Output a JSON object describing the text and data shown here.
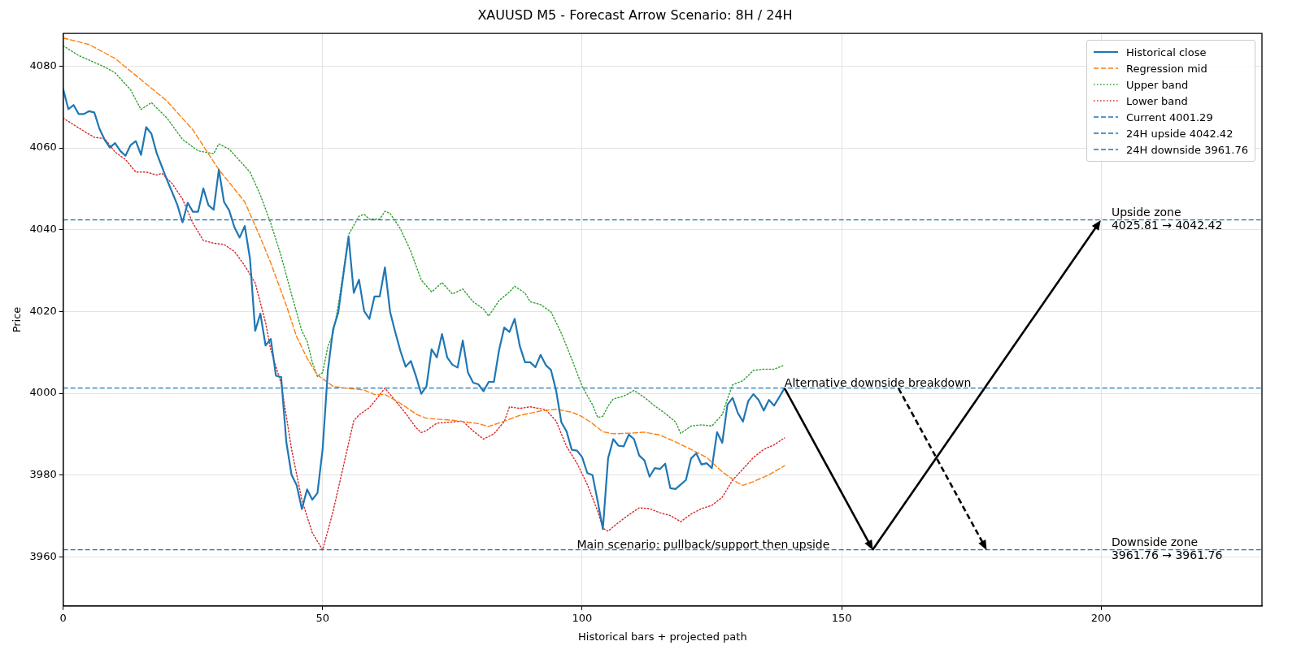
{
  "chart_data": {
    "type": "line",
    "title": "XAUUSD M5 - Forecast Arrow Scenario: 8H / 24H",
    "xlabel": "Historical bars + projected path",
    "ylabel": "Price",
    "xlim": [
      0,
      231
    ],
    "ylim": [
      3948,
      4088
    ],
    "xticks": [
      0,
      50,
      100,
      150,
      200
    ],
    "yticks": [
      3960,
      3980,
      4000,
      4020,
      4040,
      4060,
      4080
    ],
    "grid": true,
    "legend": "top right",
    "marker": "none",
    "series": [
      {
        "name": "Historical close",
        "color": "#1f77b4",
        "line_style": "solid",
        "x": [
          0,
          1,
          2,
          3,
          4,
          5,
          6,
          7,
          8,
          9,
          10,
          11,
          12,
          13,
          14,
          15,
          16,
          17,
          18,
          19,
          20,
          21,
          22,
          23,
          24,
          25,
          26,
          27,
          28,
          29,
          30,
          31,
          32,
          33,
          34,
          35,
          36,
          37,
          38,
          39,
          40,
          41,
          42,
          43,
          44,
          45,
          46,
          47,
          48,
          49,
          50,
          51,
          52,
          53,
          54,
          55,
          56,
          57,
          58,
          59,
          60,
          61,
          62,
          63,
          64,
          65,
          66,
          67,
          68,
          69,
          70,
          71,
          72,
          73,
          74,
          75,
          76,
          77,
          78,
          79,
          80,
          81,
          82,
          83,
          84,
          85,
          86,
          87,
          88,
          89,
          90,
          91,
          92,
          93,
          94,
          95,
          96,
          97,
          98,
          99,
          100,
          101,
          102,
          103,
          104,
          105,
          106,
          107,
          108,
          109,
          110,
          111,
          112,
          113,
          114,
          115,
          116,
          117,
          118,
          119,
          120,
          121,
          122,
          123,
          124,
          125,
          126,
          127,
          128,
          129,
          130,
          131,
          132,
          133,
          134,
          135,
          136,
          137,
          138,
          139
        ],
        "values": [
          4074.4,
          4069.5,
          4070.5,
          4068.3,
          4068.3,
          4069.0,
          4068.7,
          4064.7,
          4062.0,
          4060.1,
          4061.2,
          4059.3,
          4058.1,
          4060.7,
          4061.7,
          4058.3,
          4065.1,
          4063.5,
          4058.8,
          4055.5,
          4052.2,
          4049.2,
          4046.1,
          4041.8,
          4046.6,
          4044.4,
          4044.4,
          4050.1,
          4046.0,
          4044.9,
          4054.7,
          4046.8,
          4044.7,
          4040.6,
          4038.1,
          4040.9,
          4032.9,
          4015.3,
          4019.5,
          4011.7,
          4013.3,
          4004.3,
          4004.0,
          3988.1,
          3980.1,
          3977.5,
          3971.7,
          3976.5,
          3974.0,
          3975.6,
          3986.4,
          4005.5,
          4015.6,
          4019.7,
          4029.1,
          4038.3,
          4024.6,
          4027.8,
          4020.1,
          4018.2,
          4023.7,
          4023.7,
          4030.8,
          4019.9,
          4014.9,
          4010.3,
          4006.5,
          4007.9,
          4004.1,
          3999.9,
          4001.7,
          4010.8,
          4008.8,
          4014.5,
          4008.8,
          4007.0,
          4006.3,
          4012.9,
          4005.1,
          4002.6,
          4002.2,
          4000.5,
          4002.8,
          4002.8,
          4010.6,
          4016.1,
          4015.0,
          4018.2,
          4011.5,
          4007.6,
          4007.6,
          4006.4,
          4009.4,
          4006.9,
          4005.7,
          4000.6,
          3992.9,
          3990.7,
          3986.2,
          3986.0,
          3984.4,
          3980.5,
          3980.0,
          3973.6,
          3966.8,
          3984.1,
          3988.8,
          3987.2,
          3987.0,
          3989.9,
          3988.8,
          3984.8,
          3983.6,
          3979.6,
          3981.7,
          3981.5,
          3982.8,
          3976.8,
          3976.6,
          3977.7,
          3978.8,
          3984.1,
          3985.3,
          3982.6,
          3982.9,
          3981.7,
          3990.5,
          3987.9,
          3997.2,
          3998.9,
          3995.2,
          3993.1,
          3998.1,
          3999.8,
          3998.4,
          3995.8,
          3998.4,
          3997.0,
          3999.1,
          4001.29
        ]
      },
      {
        "name": "Regression mid",
        "color": "#ff7f0e",
        "line_style": "dashed",
        "x": [
          0,
          5,
          10,
          15,
          20,
          25,
          30,
          35,
          38,
          40,
          43,
          45,
          47,
          49,
          50,
          52,
          55,
          58,
          60,
          62,
          64,
          66,
          68,
          70,
          75,
          80,
          82,
          85,
          88,
          92,
          95,
          98,
          100,
          102,
          104,
          106,
          110,
          112,
          115,
          118,
          121,
          124,
          127,
          130,
          131,
          133,
          136,
          139
        ],
        "values": [
          4086.9,
          4085.3,
          4081.9,
          4076.7,
          4071.5,
          4064.4,
          4054.7,
          4046.8,
          4038.1,
          4031.9,
          4021.5,
          4013.8,
          4008.6,
          4004.4,
          4003.6,
          4001.7,
          4001.2,
          4000.8,
          3999.7,
          3999.7,
          3998.3,
          3996.7,
          3994.9,
          3993.9,
          3993.4,
          3992.6,
          3991.9,
          3993.2,
          3994.6,
          3995.7,
          3996.1,
          3995.4,
          3994.3,
          3992.6,
          3990.6,
          3990.1,
          3990.3,
          3990.5,
          3989.8,
          3988.1,
          3986.3,
          3984.3,
          3980.8,
          3978.1,
          3977.5,
          3978.4,
          3980.1,
          3982.3
        ]
      },
      {
        "name": "Upper band",
        "color": "#2ca02c",
        "line_style": "dotted",
        "x": [
          0,
          3,
          5,
          8,
          10,
          13,
          15,
          17,
          20,
          23,
          26,
          29,
          30,
          32,
          34,
          36,
          38,
          40,
          42,
          44,
          46,
          47,
          48,
          49,
          50,
          51,
          52,
          53,
          54,
          55,
          57,
          58,
          59,
          61,
          62,
          63,
          65,
          67,
          69,
          71,
          72,
          73,
          75,
          77,
          79,
          81,
          82,
          84,
          86,
          87,
          89,
          90,
          92,
          94,
          96,
          98,
          100,
          102,
          103,
          104,
          105,
          106,
          108,
          110,
          112,
          114,
          116,
          118,
          119,
          121,
          123,
          125,
          127,
          128,
          129,
          131,
          133,
          135,
          137,
          139
        ],
        "values": [
          4085.0,
          4082.6,
          4081.5,
          4079.8,
          4078.4,
          4074.2,
          4069.4,
          4071.1,
          4067.3,
          4062.1,
          4059.3,
          4058.6,
          4061.0,
          4059.7,
          4056.9,
          4054.1,
          4048.5,
          4041.6,
          4033.6,
          4024.2,
          4015.2,
          4012.8,
          4007.6,
          4004.1,
          4005.1,
          4011.4,
          4014.5,
          4021.5,
          4029.8,
          4038.8,
          4043.3,
          4043.8,
          4042.6,
          4042.6,
          4044.5,
          4044.0,
          4040.2,
          4034.7,
          4027.7,
          4024.8,
          4025.9,
          4027.1,
          4024.3,
          4025.5,
          4022.4,
          4020.6,
          4018.9,
          4022.7,
          4024.8,
          4026.2,
          4024.5,
          4022.4,
          4021.7,
          4019.9,
          4014.7,
          4008.4,
          4001.7,
          3997.2,
          3994.1,
          3994.4,
          3996.9,
          3998.6,
          3999.3,
          4000.7,
          3999.0,
          3996.9,
          3995.1,
          3993.0,
          3990.2,
          3992.0,
          3992.3,
          3992.0,
          3994.8,
          3998.6,
          4002.1,
          4003.1,
          4005.6,
          4005.9,
          4005.9,
          4006.9
        ]
      },
      {
        "name": "Lower band",
        "color": "#d62728",
        "line_style": "dotted",
        "x": [
          0,
          3,
          6,
          8,
          10,
          12,
          14,
          16,
          18,
          19,
          21,
          23,
          25,
          27,
          29,
          31,
          33,
          35,
          37,
          39,
          40,
          42,
          44,
          46,
          48,
          50,
          52,
          54,
          56,
          57,
          59,
          61,
          62,
          64,
          66,
          68,
          69,
          70,
          72,
          74,
          77,
          79,
          81,
          83,
          85,
          86,
          88,
          90,
          93,
          95,
          97,
          99,
          101,
          103,
          104,
          105,
          107,
          109,
          111,
          113,
          115,
          117,
          119,
          121,
          123,
          125,
          127,
          129,
          131,
          133,
          135,
          137,
          139
        ],
        "values": [
          4067.3,
          4064.9,
          4062.6,
          4062.3,
          4059.0,
          4057.2,
          4054.1,
          4054.1,
          4053.4,
          4053.8,
          4051.3,
          4047.5,
          4041.6,
          4037.4,
          4036.7,
          4036.4,
          4034.7,
          4031.2,
          4027.0,
          4017.3,
          4010.7,
          4002.4,
          3986.4,
          3973.9,
          3965.9,
          3961.7,
          3971.1,
          3982.2,
          3993.3,
          3994.7,
          3996.5,
          3999.6,
          4001.3,
          3998.2,
          3995.1,
          3991.6,
          3990.4,
          3990.9,
          3992.7,
          3992.9,
          3993.2,
          3990.8,
          3988.8,
          3990.1,
          3993.1,
          3996.7,
          3996.3,
          3996.7,
          3996.0,
          3993.2,
          3987.0,
          3982.9,
          3977.7,
          3971.2,
          3967.0,
          3966.3,
          3968.4,
          3970.3,
          3972.0,
          3971.8,
          3970.8,
          3970.1,
          3968.6,
          3970.5,
          3971.8,
          3972.6,
          3974.6,
          3978.8,
          3981.5,
          3984.3,
          3986.3,
          3987.4,
          3989.1
        ]
      }
    ],
    "ref_lines": [
      {
        "axis": "y",
        "value": 4001.29,
        "label": "Current 4001.29",
        "color": "#1f77b4",
        "line_style": "dashed"
      },
      {
        "axis": "y",
        "value": 4042.42,
        "label": "24H upside 4042.42",
        "color": "#1f77b4",
        "line_style": "dashed"
      },
      {
        "axis": "y",
        "value": 3961.76,
        "label": "24H downside 3961.76",
        "color": "#1f77b4",
        "line_style": "dashed"
      }
    ],
    "annotations": [
      {
        "text": "Alternative downside breakdown",
        "x": 139,
        "y": 4001.29
      },
      {
        "text": "Main scenario: pullback/support then upside",
        "x": 99,
        "y": 3961.76
      },
      {
        "text": "Upside zone\n4025.81 → 4042.42",
        "x": 202,
        "y": 4042.42
      },
      {
        "text": "Downside zone\n3961.76 → 3961.76",
        "x": 202,
        "y": 3961.76
      }
    ]
  }
}
